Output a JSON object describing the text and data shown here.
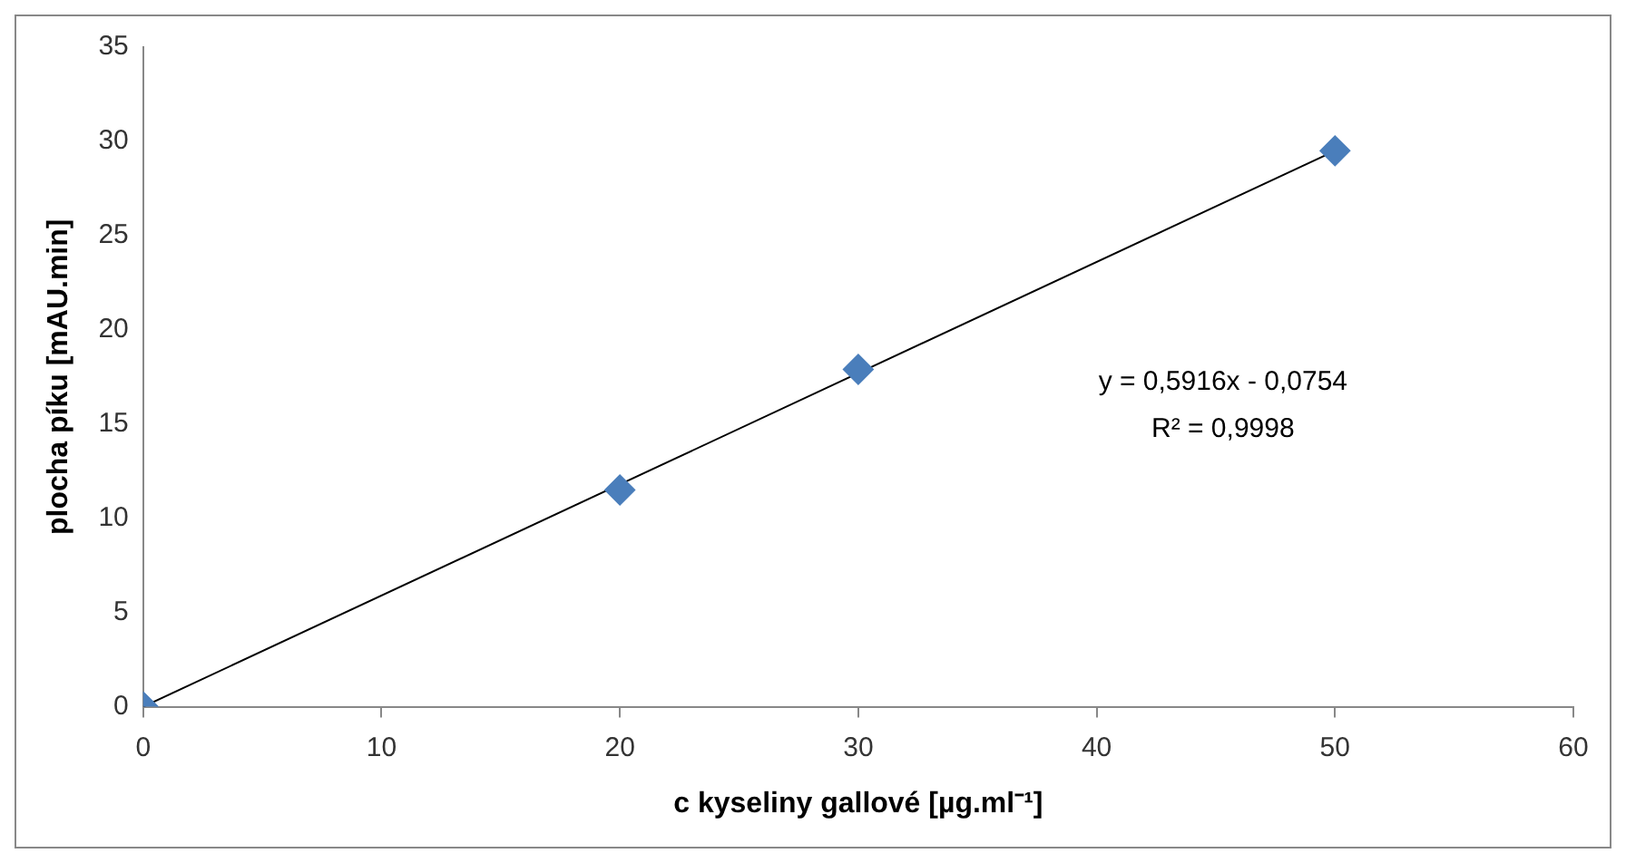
{
  "chart_data": {
    "type": "scatter",
    "xlabel": "c kyseliny gallové [µg.ml⁻¹]",
    "ylabel": "plocha píku [mAU.min]",
    "xlim": [
      0,
      60
    ],
    "xticks": [
      0,
      10,
      20,
      30,
      40,
      50,
      60
    ],
    "ylim": [
      0,
      35
    ],
    "yticks": [
      0,
      5,
      10,
      15,
      20,
      25,
      30,
      35
    ],
    "grid": false,
    "legend": false,
    "series": [
      {
        "color": "#4a7ebb",
        "marker": "diamond",
        "x": [
          0,
          20,
          30,
          50
        ],
        "values": [
          0,
          11.5,
          17.9,
          29.5
        ]
      },
      {
        "type": "line",
        "marker": "none",
        "color": "#000000",
        "x": [
          0,
          50
        ],
        "values": [
          0,
          29.5
        ]
      }
    ],
    "annotations": [
      "y = 0,5916x - 0,0754",
      "R² = 0,9998"
    ]
  }
}
